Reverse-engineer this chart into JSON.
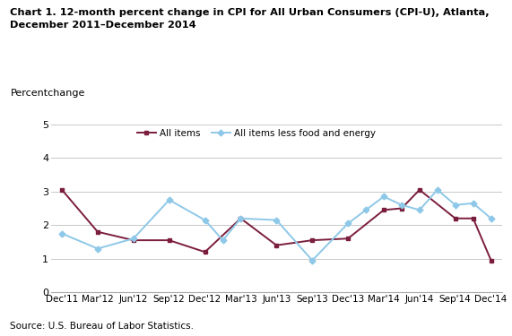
{
  "title_line1": "Chart 1. 12-month percent change in CPI for All Urban Consumers (CPI-U), Atlanta,",
  "title_line2": "December 2011–December 2014",
  "ylabel": "Percentchange",
  "source": "Source: U.S. Bureau of Labor Statistics.",
  "x_labels": [
    "Dec'11",
    "Mar'12",
    "Jun'12",
    "Sep'12",
    "Dec'12",
    "Mar'13",
    "Jun'13",
    "Sep'13",
    "Dec'13",
    "Mar'14",
    "Jun'14",
    "Sep'14",
    "Dec'14"
  ],
  "all_items": [
    3.05,
    1.8,
    1.55,
    1.55,
    1.2,
    2.2,
    1.4,
    1.55,
    1.6,
    2.45,
    2.5,
    3.05,
    2.2,
    2.2,
    0.95
  ],
  "all_items_x": [
    0,
    1,
    2,
    3,
    4,
    5,
    6,
    7,
    8,
    9,
    9.5,
    10,
    11,
    11.5,
    12
  ],
  "core_items": [
    1.75,
    1.3,
    1.6,
    2.75,
    2.15,
    1.55,
    2.2,
    2.15,
    0.95,
    2.05,
    2.45,
    2.85,
    2.6,
    2.45,
    3.05,
    2.6,
    2.65,
    2.2
  ],
  "core_items_x": [
    0,
    1,
    2,
    3,
    4,
    4.5,
    5,
    6,
    7,
    8,
    8.5,
    9,
    9.5,
    10,
    10.5,
    11,
    11.5,
    12
  ],
  "line1_color": "#7B1E3C",
  "line2_color": "#8EC8E8",
  "ylim": [
    0,
    5
  ],
  "yticks": [
    0,
    1,
    2,
    3,
    4,
    5
  ],
  "background_color": "#ffffff",
  "grid_color": "#c8c8c8"
}
